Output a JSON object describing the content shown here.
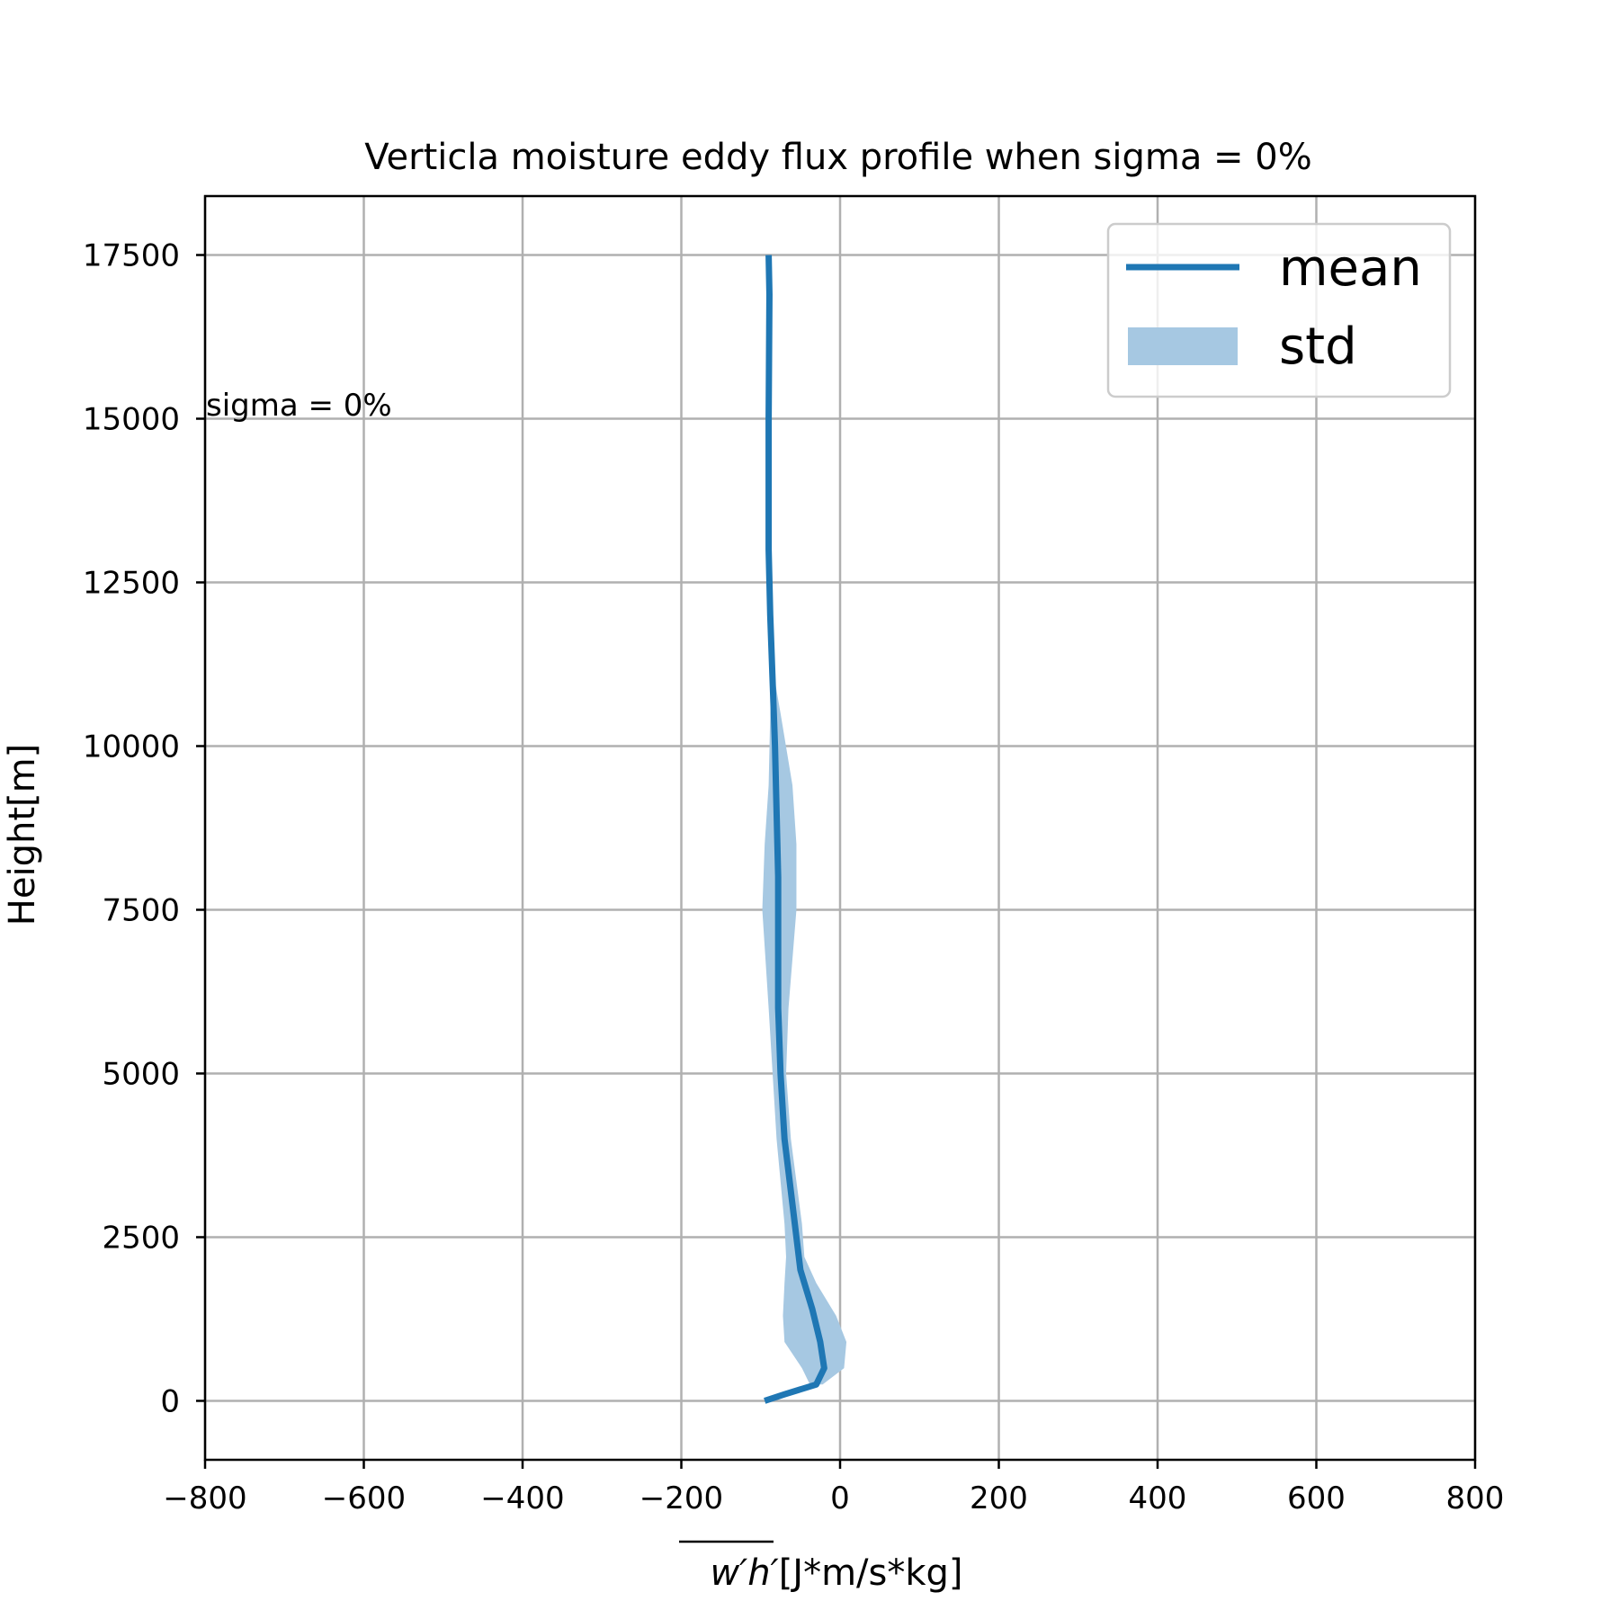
{
  "chart_data": {
    "type": "line",
    "title": "Verticla moisture eddy flux profile when sigma = 0%",
    "xlabel_math": "w′h′",
    "xlabel_units": "[J*m/s*kg]",
    "ylabel": "Height[m]",
    "xlim": [
      -800,
      800
    ],
    "ylim": [
      -900,
      18400
    ],
    "xticks": [
      -800,
      -600,
      -400,
      -200,
      0,
      200,
      400,
      600,
      800
    ],
    "xtick_labels": [
      "−800",
      "−600",
      "−400",
      "−200",
      "0",
      "200",
      "400",
      "600",
      "800"
    ],
    "yticks": [
      0,
      2500,
      5000,
      7500,
      10000,
      12500,
      15000,
      17500
    ],
    "ytick_labels": [
      "0",
      "2500",
      "5000",
      "7500",
      "10000",
      "12500",
      "15000",
      "17500"
    ],
    "grid": true,
    "legend_position": "top-right",
    "annotation": "sigma = 0%",
    "colors": {
      "mean": "#1f77b4",
      "std": "#a6c8e2"
    },
    "series": [
      {
        "name": "mean",
        "kind": "line",
        "x": [
          -95,
          -70,
          -30,
          -20,
          -25,
          -35,
          -50,
          -60,
          -70,
          -75,
          -78,
          -78,
          -78,
          -80,
          -82,
          -85,
          -88,
          -90,
          -90,
          -90,
          -89,
          -90
        ],
        "y": [
          0,
          100,
          250,
          500,
          900,
          1400,
          2000,
          3000,
          4000,
          5000,
          6000,
          7000,
          8000,
          9000,
          10000,
          11000,
          12000,
          13000,
          14000,
          15000,
          16900,
          17500
        ]
      },
      {
        "name": "std",
        "kind": "band",
        "y": [
          250,
          500,
          900,
          1300,
          1800,
          2200,
          2700,
          4000,
          5000,
          6000,
          7500,
          8500,
          9400,
          10500,
          11200
        ],
        "lower": [
          -38,
          -48,
          -70,
          -72,
          -70,
          -68,
          -70,
          -80,
          -85,
          -90,
          -98,
          -95,
          -90,
          -88,
          -85
        ],
        "upper": [
          -22,
          5,
          8,
          -5,
          -30,
          -45,
          -48,
          -62,
          -68,
          -65,
          -55,
          -55,
          -60,
          -75,
          -85
        ]
      }
    ]
  }
}
